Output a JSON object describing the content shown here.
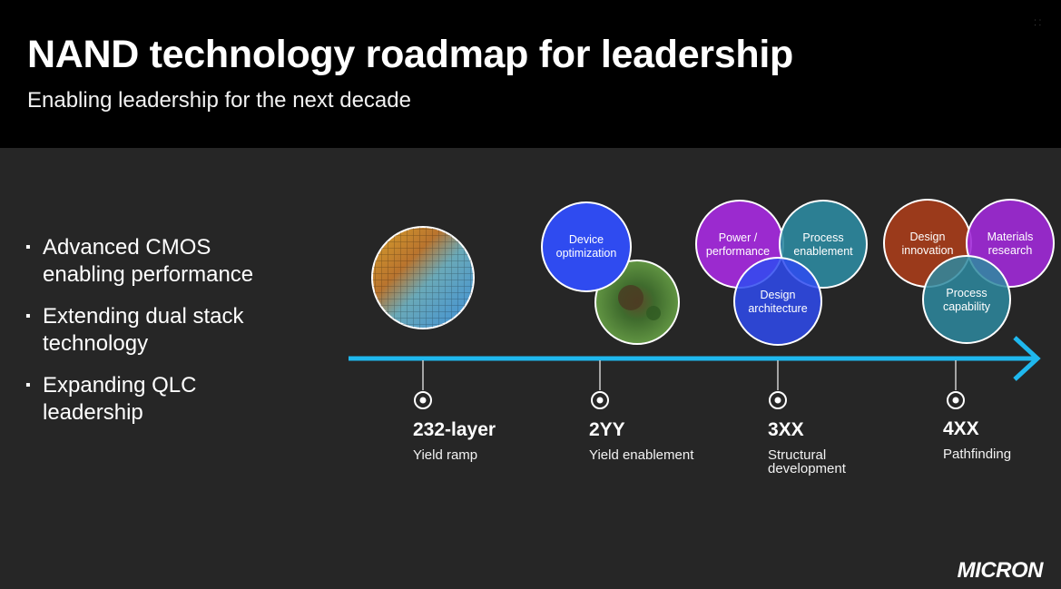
{
  "header": {
    "title": "NAND technology roadmap for leadership",
    "subtitle": "Enabling leadership for the next decade"
  },
  "bullets": [
    "Advanced CMOS enabling performance",
    "Extending dual stack technology",
    "Expanding QLC leadership"
  ],
  "bullet_marker": "▪",
  "milestones": [
    {
      "title": "232-layer",
      "description": "Yield ramp"
    },
    {
      "title": "2YY",
      "description": "Yield enablement"
    },
    {
      "title": "3XX",
      "description": "Structural development"
    },
    {
      "title": "4XX",
      "description": "Pathfinding"
    }
  ],
  "circles": {
    "device_optimization": "Device optimization",
    "power_performance": "Power / performance",
    "process_enablement": "Process enablement",
    "design_architecture": "Design architecture",
    "design_innovation": "Design innovation",
    "materials_research": "Materials research",
    "process_capability": "Process capability"
  },
  "colors": {
    "background": "#262626",
    "header_bg": "#000000",
    "arrow": "#1fb8ee",
    "blue": "#2f4bf0",
    "purple": "#a12ad8",
    "teal": "#2e8aa0",
    "rust": "#a13b1a"
  },
  "logo": "MICRON"
}
